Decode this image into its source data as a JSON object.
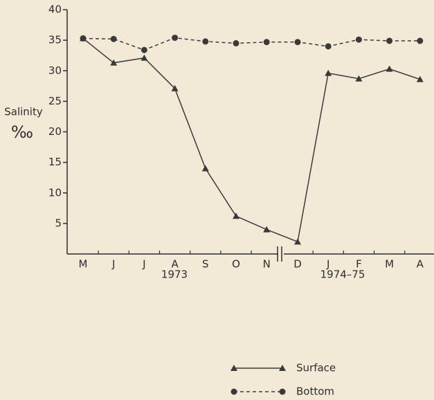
{
  "chart_data": {
    "type": "line",
    "y_label": "Salinity",
    "y_unit": "‰",
    "categories": [
      "M",
      "J",
      "J",
      "A",
      "S",
      "O",
      "N",
      "D",
      "J",
      "F",
      "M",
      "A"
    ],
    "x_groups": [
      "1973",
      "1974–75"
    ],
    "series": [
      {
        "name": "Surface",
        "color": "#3a3a3a",
        "marker": "triangle",
        "dashed": false,
        "values": [
          35.3,
          31.3,
          32.1,
          27.1,
          14.0,
          6.2,
          4.0,
          2.0,
          29.6,
          28.7,
          30.3,
          28.6
        ]
      },
      {
        "name": "Bottom",
        "color": "#3a3a3a",
        "marker": "circle",
        "dashed": true,
        "values": [
          35.3,
          35.2,
          33.4,
          35.4,
          34.8,
          34.5,
          34.7,
          34.7,
          34.0,
          35.1,
          34.9,
          34.9
        ]
      }
    ],
    "ylim": [
      0,
      40
    ],
    "yticks": [
      5,
      10,
      15,
      20,
      25,
      30,
      35,
      40
    ],
    "grid": false
  }
}
